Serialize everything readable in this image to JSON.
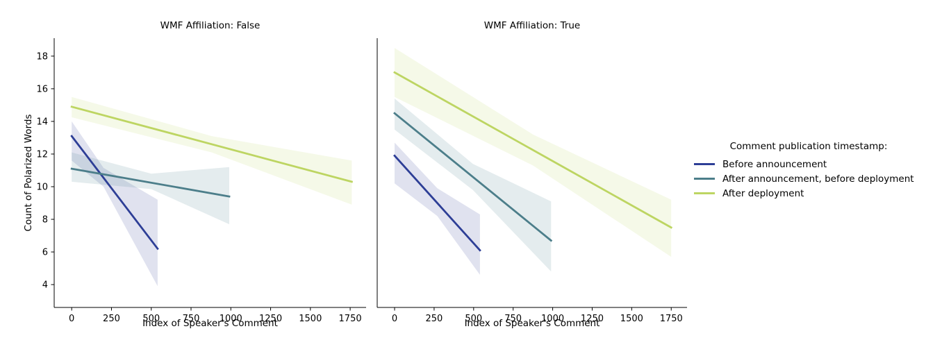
{
  "chart_data": {
    "type": "line",
    "xlabel": "Index of Speaker's Comment",
    "ylabel": "Count of Polarized Words",
    "x_ticks": [
      0,
      250,
      500,
      750,
      1000,
      1250,
      1500,
      1750
    ],
    "y_ticks": [
      4,
      6,
      8,
      10,
      12,
      14,
      16,
      18
    ],
    "xlim": [
      -110,
      1850
    ],
    "ylim": [
      2.6,
      19.1
    ],
    "grid": false,
    "legend": {
      "title": "Comment publication timestamp:",
      "position": "right",
      "entries": [
        {
          "label": "Before announcement",
          "color": "#2d3e96"
        },
        {
          "label": "After announcement, before deployment",
          "color": "#4c7e8a"
        },
        {
          "label": "After deployment",
          "color": "#bdd562"
        }
      ]
    },
    "facets": [
      {
        "title": "WMF Affiliation: False",
        "series": [
          {
            "name": "Before announcement",
            "color": "#2d3e96",
            "x": [
              0,
              540
            ],
            "y": [
              13.1,
              6.2
            ],
            "ci": {
              "x": [
                0,
                200,
                540
              ],
              "lo": [
                11.6,
                10.0,
                3.9
              ],
              "hi": [
                14.0,
                11.15,
                9.2
              ]
            }
          },
          {
            "name": "After announcement, before deployment",
            "color": "#4c7e8a",
            "x": [
              0,
              990
            ],
            "y": [
              11.1,
              9.4
            ],
            "ci": {
              "x": [
                0,
                500,
                990
              ],
              "lo": [
                10.3,
                9.85,
                7.7
              ],
              "hi": [
                12.1,
                10.8,
                11.2
              ]
            }
          },
          {
            "name": "After deployment",
            "color": "#bdd562",
            "x": [
              0,
              1760
            ],
            "y": [
              14.9,
              10.3
            ],
            "ci": {
              "x": [
                0,
                880,
                1760
              ],
              "lo": [
                14.25,
                12.1,
                8.9
              ],
              "hi": [
                15.5,
                13.1,
                11.6
              ]
            }
          }
        ]
      },
      {
        "title": "WMF Affiliation: True",
        "series": [
          {
            "name": "Before announcement",
            "color": "#2d3e96",
            "x": [
              0,
              540
            ],
            "y": [
              11.9,
              6.1
            ],
            "ci": {
              "x": [
                0,
                270,
                540
              ],
              "lo": [
                10.2,
                8.2,
                4.6
              ],
              "hi": [
                12.7,
                9.9,
                8.3
              ]
            }
          },
          {
            "name": "After announcement, before deployment",
            "color": "#4c7e8a",
            "x": [
              0,
              990
            ],
            "y": [
              14.5,
              6.7
            ],
            "ci": {
              "x": [
                0,
                495,
                990
              ],
              "lo": [
                13.5,
                9.8,
                4.8
              ],
              "hi": [
                15.4,
                11.4,
                9.1
              ]
            }
          },
          {
            "name": "After deployment",
            "color": "#bdd562",
            "x": [
              0,
              1750
            ],
            "y": [
              17.0,
              7.5
            ],
            "ci": {
              "x": [
                0,
                875,
                1750
              ],
              "lo": [
                15.5,
                11.3,
                5.7
              ],
              "hi": [
                18.5,
                13.2,
                9.2
              ]
            }
          }
        ]
      }
    ]
  }
}
